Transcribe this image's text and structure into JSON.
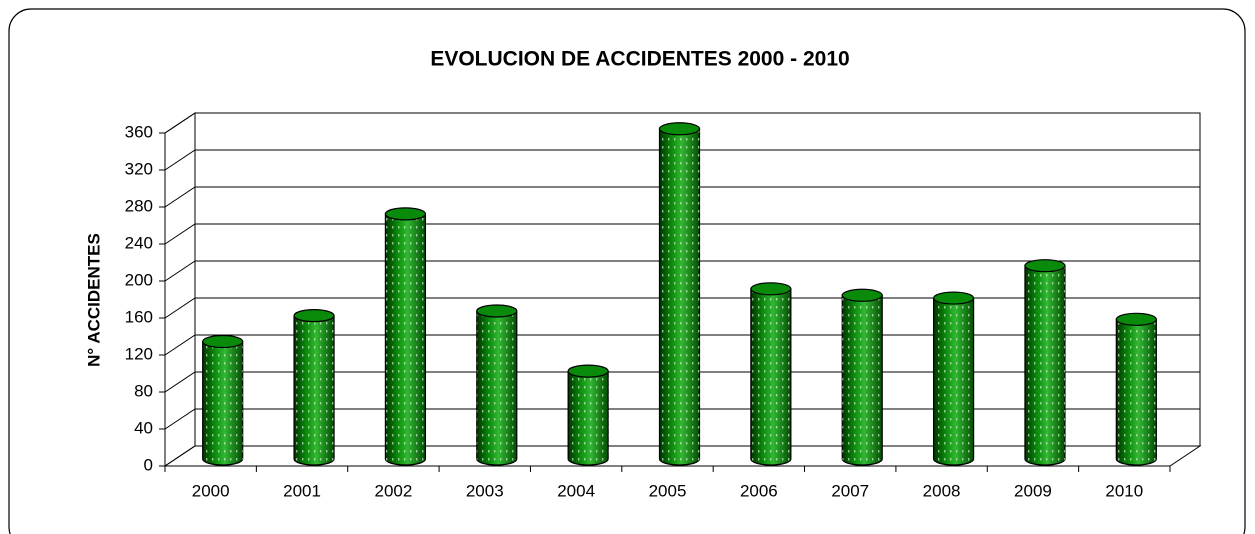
{
  "chart_data": {
    "type": "bar",
    "title": "EVOLUCION DE ACCIDENTES 2000 - 2010",
    "y_label": "N° ACCIDENTES",
    "categories": [
      "2000",
      "2001",
      "2002",
      "2003",
      "2004",
      "2005",
      "2006",
      "2007",
      "2008",
      "2009",
      "2010"
    ],
    "values": [
      127,
      155,
      265,
      160,
      95,
      357,
      184,
      177,
      174,
      209,
      151
    ],
    "color": "#0a8a0a",
    "ylim": [
      0,
      360
    ],
    "yticks": [
      0,
      40,
      80,
      120,
      160,
      200,
      240,
      280,
      320,
      360
    ],
    "grid": true
  }
}
